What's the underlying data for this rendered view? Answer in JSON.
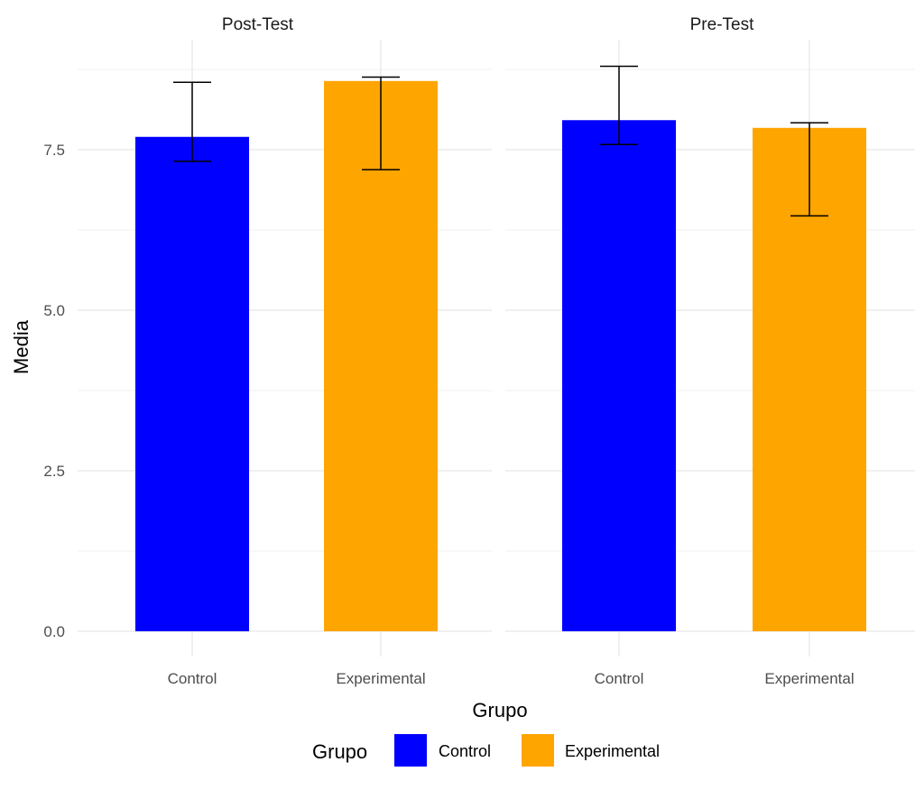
{
  "chart_data": {
    "type": "bar",
    "facets": [
      {
        "title": "Post-Test",
        "categories": [
          "Control",
          "Experimental"
        ],
        "values": [
          7.7,
          8.57
        ],
        "error_low": [
          7.32,
          7.19
        ],
        "error_high": [
          8.55,
          8.63
        ]
      },
      {
        "title": "Pre-Test",
        "categories": [
          "Control",
          "Experimental"
        ],
        "values": [
          7.96,
          7.84
        ],
        "error_low": [
          7.58,
          6.47
        ],
        "error_high": [
          8.8,
          7.92
        ]
      }
    ],
    "xlabel": "Grupo",
    "ylabel": "Media",
    "ylim": [
      0,
      9
    ],
    "yticks": [
      "0.0",
      "2.5",
      "5.0",
      "7.5"
    ],
    "ytick_values": [
      0,
      2.5,
      5,
      7.5
    ],
    "grid": true,
    "colors": {
      "Control": "#0000ff",
      "Experimental": "#ffa500"
    },
    "legend": {
      "title": "Grupo",
      "position": "bottom",
      "items": [
        {
          "label": "Control",
          "color": "#0000ff"
        },
        {
          "label": "Experimental",
          "color": "#ffa500"
        }
      ]
    }
  }
}
